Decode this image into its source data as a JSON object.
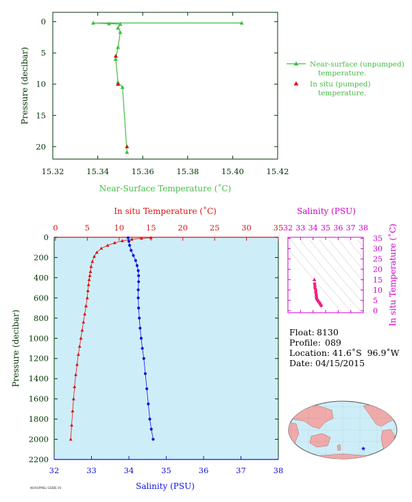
{
  "colors": {
    "near_surface": "#44bb44",
    "insitu": "#dd1111",
    "salinity": "#1111dd",
    "ts_magenta": "#cc00cc",
    "ts_points": "#ee2288",
    "panel_bg": "#cdeef8",
    "axis_dark": "#003300"
  },
  "chart_data": [
    {
      "id": "near_surface_profile",
      "type": "line",
      "title": "",
      "xlabel": "Near-Surface Temperature (˚C)",
      "ylabel": "Pressure (decibar)",
      "xlim": [
        15.32,
        15.42
      ],
      "ylim": [
        22,
        -1.5
      ],
      "x_ticks": [
        "15.32",
        "15.34",
        "15.36",
        "15.38",
        "15.40",
        "15.42"
      ],
      "y_ticks": [
        "0",
        "5",
        "10",
        "15",
        "20"
      ],
      "series": [
        {
          "name": "Near-surface (unpumped) temperature.",
          "marker": "triangle",
          "x": [
            15.404,
            15.338,
            15.345,
            15.35,
            15.349,
            15.35,
            15.349,
            15.348,
            15.349,
            15.351,
            15.353
          ],
          "y": [
            0.2,
            0.2,
            0.3,
            0.4,
            1.0,
            1.7,
            4.1,
            6.0,
            9.7,
            10.5,
            20.9
          ]
        },
        {
          "name": "In situ (pumped) temperature.",
          "marker": "triangle",
          "x": [
            15.348,
            15.349,
            15.353
          ],
          "y": [
            5.5,
            10.0,
            20.0
          ]
        }
      ]
    },
    {
      "id": "main_profile",
      "type": "line",
      "title": "",
      "x_top_label": "In situ Temperature (˚C)",
      "x_bottom_label": "Salinity (PSU)",
      "ylabel": "Pressure (decibar)",
      "temp_lim": [
        -0.2,
        35
      ],
      "sal_lim": [
        32,
        38
      ],
      "ylim": [
        2200,
        0
      ],
      "temp_ticks": [
        "0",
        "5",
        "10",
        "15",
        "20",
        "25",
        "30",
        "35"
      ],
      "sal_ticks": [
        "32",
        "33",
        "34",
        "35",
        "36",
        "37",
        "38"
      ],
      "p_ticks": [
        "0",
        "200",
        "400",
        "600",
        "800",
        "1000",
        "1200",
        "1400",
        "1600",
        "1800",
        "2000",
        "2200"
      ],
      "series": [
        {
          "name": "In situ Temperature (˚C)",
          "marker": "triangle",
          "x": [
            15.0,
            13.5,
            12.0,
            10.5,
            9.3,
            8.2,
            7.2,
            6.5,
            6.1,
            5.8,
            5.6,
            5.5,
            5.4,
            5.3,
            5.2,
            5.1,
            5.0,
            4.8,
            4.6,
            4.4,
            4.2,
            4.0,
            3.8,
            3.6,
            3.4,
            3.2,
            3.0,
            2.85,
            2.7,
            2.55,
            2.4
          ],
          "y": [
            5,
            10,
            20,
            35,
            55,
            80,
            110,
            150,
            190,
            240,
            290,
            340,
            380,
            420,
            470,
            530,
            600,
            680,
            760,
            840,
            920,
            1000,
            1080,
            1160,
            1260,
            1360,
            1480,
            1600,
            1720,
            1860,
            2000
          ]
        },
        {
          "name": "Salinity (PSU)",
          "marker": "dot",
          "x": [
            33.98,
            34.0,
            34.02,
            34.06,
            34.12,
            34.18,
            34.22,
            34.25,
            34.26,
            34.26,
            34.25,
            34.25,
            34.26,
            34.28,
            34.3,
            34.33,
            34.36,
            34.4,
            34.44,
            34.48,
            34.52,
            34.56,
            34.6,
            34.65
          ],
          "y": [
            5,
            40,
            80,
            130,
            180,
            230,
            280,
            330,
            380,
            440,
            520,
            600,
            700,
            800,
            900,
            1000,
            1100,
            1200,
            1350,
            1500,
            1650,
            1800,
            1900,
            2000
          ]
        }
      ]
    },
    {
      "id": "ts_diagram",
      "type": "scatter",
      "title": "",
      "xlabel": "Salinity (PSU)",
      "ylabel": "In situ Temperature (˚C)",
      "xlim": [
        32,
        38
      ],
      "ylim": [
        -1,
        35.5
      ],
      "x_ticks": [
        "32",
        "33",
        "34",
        "35",
        "36",
        "37",
        "38"
      ],
      "y_ticks": [
        "0",
        "5",
        "10",
        "15",
        "20",
        "25",
        "30",
        "35"
      ],
      "points": {
        "x": [
          34.1,
          34.12,
          34.15,
          34.15,
          34.2,
          34.22,
          34.22,
          34.25,
          34.26,
          34.26,
          34.28,
          34.3,
          34.33,
          34.36,
          34.4,
          34.45,
          34.5,
          34.55,
          34.6,
          34.65
        ],
        "y": [
          15.0,
          13.0,
          12.0,
          11.0,
          10.3,
          9.5,
          8.8,
          8.0,
          7.2,
          6.5,
          6.0,
          5.6,
          5.3,
          5.0,
          4.7,
          4.3,
          3.9,
          3.4,
          2.9,
          2.4
        ]
      }
    }
  ],
  "legend": {
    "unpumped_l1": "Near-surface (unpumped)",
    "unpumped_l2": "temperature.",
    "pumped_l1": "In situ (pumped)",
    "pumped_l2": "temperature."
  },
  "info": {
    "float_label": "Float:",
    "float_value": "8130",
    "profile_label": "Profile:",
    "profile_value": "089",
    "location_label": "Location:",
    "location_value": "41.6˚S  96.9˚W",
    "date_label": "Date:",
    "date_value": "04/15/2015"
  },
  "map": {
    "marker_lat": -41.6,
    "marker_lon": -96.9
  },
  "footnote": "NOAA/PMEL/ EDDIE.V0"
}
